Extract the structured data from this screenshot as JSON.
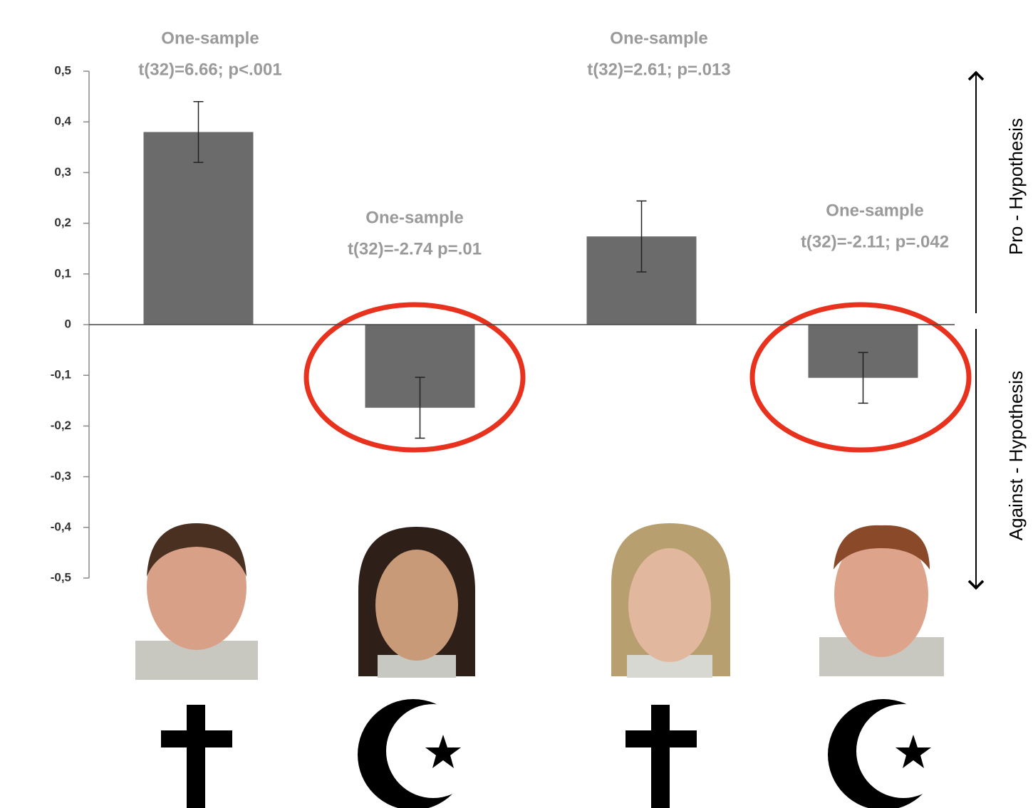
{
  "chart_data": {
    "type": "bar",
    "categories": [
      null,
      null,
      null,
      null
    ],
    "values": [
      0.38,
      -0.164,
      0.174,
      -0.105
    ],
    "errors": [
      0.06,
      0.06,
      0.07,
      0.05
    ],
    "color": "#6b6b6b",
    "ylim": [
      -0.5,
      0.5
    ],
    "yticks": [
      {
        "value": 0.5,
        "label": "0,5"
      },
      {
        "value": 0.4,
        "label": "0,4"
      },
      {
        "value": 0.3,
        "label": "0,3"
      },
      {
        "value": 0.2,
        "label": "0,2"
      },
      {
        "value": 0.1,
        "label": "0,1"
      },
      0,
      {
        "value": -0.1,
        "label": "-0,1"
      },
      {
        "value": -0.2,
        "label": "-0,2"
      },
      {
        "value": -0.3,
        "label": "-0,3"
      },
      {
        "value": -0.4,
        "label": "-0,4"
      },
      {
        "value": -0.5,
        "label": "-0,5"
      }
    ],
    "grid": false,
    "annotations": [
      [
        "One-sample",
        "t(32)=6.66; p<.001"
      ],
      [
        "One-sample",
        "t(32)=-2.74 p=.01"
      ],
      [
        "One-sample",
        "t(32)=2.61; p=.013"
      ],
      [
        "One-sample",
        "t(32)=-2.11; p=.042"
      ]
    ],
    "side_labels": [
      "Pro - Hypothesis",
      "Against - Hypothesis"
    ]
  }
}
